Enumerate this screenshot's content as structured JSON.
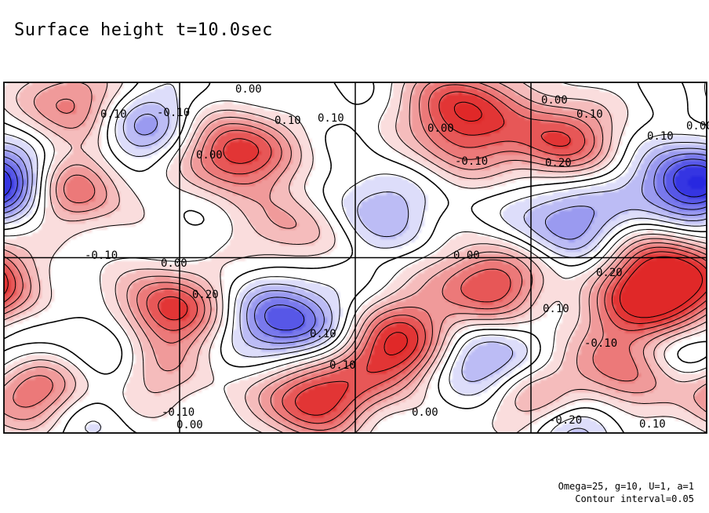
{
  "title": "Surface height t=10.0sec",
  "params_line": "Omega=25, g=10, U=1, a=1",
  "interval_line": "Contour interval=0.05",
  "colors": {
    "positive": "#e03030",
    "negative": "#2828e0",
    "background": "#ffffff",
    "line": "#000000"
  },
  "chart_data": {
    "type": "heatmap",
    "title": "Surface height t=10.0sec",
    "xlabel": "",
    "ylabel": "",
    "contour_interval": 0.05,
    "grid": true,
    "grid_divisions": {
      "columns": 4,
      "rows": 2
    },
    "value_range": [
      -0.3,
      0.35
    ],
    "annotations": {
      "contour_labels": [
        "0.00",
        "0.10",
        "-0.10",
        "0.00",
        "0.00",
        "0.10",
        "0.10",
        "-0.10",
        "0.00",
        "0.10",
        "0.10",
        "0.20",
        "0.00",
        "-0.10",
        "0.20",
        "0.00",
        "0.20",
        "0.10",
        "0.10",
        "-0.10",
        "-0.10",
        "0.00",
        "0.10",
        "-0.20",
        "0.10",
        "0.00",
        "0.00"
      ]
    },
    "features": [
      {
        "value": 0.25,
        "lon": 0.1,
        "lat": 0.94
      },
      {
        "value": 0.3,
        "lon": 0.09,
        "lat": 0.7
      },
      {
        "value": -0.2,
        "lon": 0.19,
        "lat": 0.88
      },
      {
        "value": -0.2,
        "lon": 0.02,
        "lat": 0.72
      },
      {
        "value": 0.1,
        "lon": 0.0,
        "lat": 0.4
      },
      {
        "value": 0.35,
        "lon": 0.33,
        "lat": 0.8
      },
      {
        "value": -0.1,
        "lon": 0.38,
        "lat": 0.62
      },
      {
        "value": 0.25,
        "lon": 0.4,
        "lat": 0.6
      },
      {
        "value": 0.3,
        "lon": 0.65,
        "lat": 0.94
      },
      {
        "value": 0.15,
        "lon": 0.65,
        "lat": 0.82
      },
      {
        "value": -0.15,
        "lon": 0.53,
        "lat": 0.64
      },
      {
        "value": 0.3,
        "lon": 0.69,
        "lat": 0.43
      },
      {
        "value": 0.3,
        "lon": 0.79,
        "lat": 0.84
      },
      {
        "value": -0.2,
        "lon": 0.8,
        "lat": 0.61
      },
      {
        "value": 0.35,
        "lon": 0.94,
        "lat": 0.46
      },
      {
        "value": -0.25,
        "lon": 0.97,
        "lat": 0.71
      },
      {
        "value": 0.35,
        "lon": 0.23,
        "lat": 0.35
      },
      {
        "value": -0.3,
        "lon": 0.4,
        "lat": 0.32
      },
      {
        "value": 0.15,
        "lon": 0.58,
        "lat": 0.31
      },
      {
        "value": 0.3,
        "lon": 0.91,
        "lat": 0.34
      },
      {
        "value": 0.3,
        "lon": 0.56,
        "lat": 0.22
      },
      {
        "value": -0.25,
        "lon": 0.67,
        "lat": 0.2
      },
      {
        "value": 0.25,
        "lon": 0.88,
        "lat": 0.17
      },
      {
        "value": -0.2,
        "lon": 0.96,
        "lat": 0.24
      },
      {
        "value": 0.3,
        "lon": 0.04,
        "lat": 0.12
      },
      {
        "value": 0.35,
        "lon": 0.44,
        "lat": 0.1
      },
      {
        "value": 0.25,
        "lon": 0.75,
        "lat": 0.09
      },
      {
        "value": -0.2,
        "lon": 0.8,
        "lat": 0.04
      },
      {
        "value": 0.15,
        "lon": 0.21,
        "lat": 0.17
      },
      {
        "value": -0.15,
        "lon": 0.16,
        "lat": 0.26
      },
      {
        "value": -0.1,
        "lon": 0.1,
        "lat": 0.06
      }
    ]
  }
}
